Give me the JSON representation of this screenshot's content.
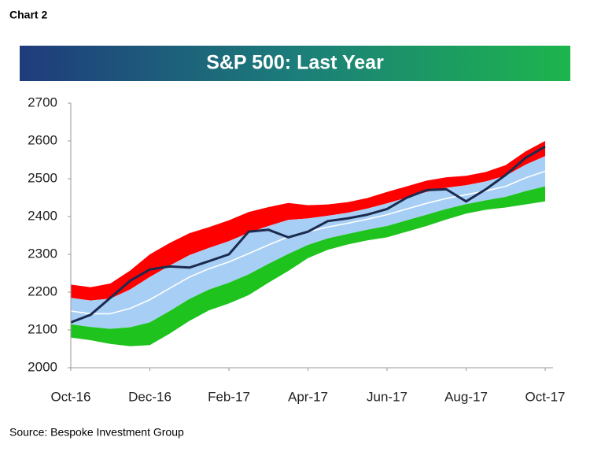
{
  "chart_data": {
    "type": "line",
    "chart_label": "Chart 2",
    "title": "S&P 500: Last Year",
    "source": "Source: Bespoke Investment Group",
    "x": [
      0,
      0.5,
      1,
      1.5,
      2,
      2.5,
      3,
      3.5,
      4,
      4.5,
      5,
      5.5,
      6,
      6.5,
      7,
      7.5,
      8,
      8.5,
      9,
      9.5,
      10,
      10.5,
      11,
      11.5,
      12
    ],
    "xlim": [
      0,
      12
    ],
    "xticks": [
      {
        "value": 0,
        "label": "Oct-16"
      },
      {
        "value": 2,
        "label": "Dec-16"
      },
      {
        "value": 4,
        "label": "Feb-17"
      },
      {
        "value": 6,
        "label": "Apr-17"
      },
      {
        "value": 8,
        "label": "Jun-17"
      },
      {
        "value": 10,
        "label": "Aug-17"
      },
      {
        "value": 12,
        "label": "Oct-17"
      }
    ],
    "ylim": [
      2000,
      2700
    ],
    "yticks": [
      2000,
      2100,
      2200,
      2300,
      2400,
      2500,
      2600,
      2700
    ],
    "grid": false,
    "bands": [
      {
        "color": "#ff0000",
        "upper": [
          2220,
          2213,
          2223,
          2257,
          2300,
          2330,
          2356,
          2372,
          2390,
          2412,
          2425,
          2436,
          2430,
          2432,
          2438,
          2449,
          2465,
          2480,
          2495,
          2504,
          2508,
          2518,
          2536,
          2572,
          2600
        ],
        "lower": [
          2185,
          2178,
          2183,
          2207,
          2240,
          2270,
          2298,
          2317,
          2335,
          2357,
          2375,
          2391,
          2395,
          2402,
          2410,
          2421,
          2435,
          2450,
          2465,
          2476,
          2483,
          2493,
          2508,
          2537,
          2560
        ]
      },
      {
        "color": "#a7cff5",
        "upper": [
          2185,
          2178,
          2183,
          2207,
          2240,
          2270,
          2298,
          2317,
          2335,
          2357,
          2375,
          2391,
          2395,
          2402,
          2410,
          2421,
          2435,
          2450,
          2465,
          2476,
          2483,
          2493,
          2508,
          2537,
          2560
        ],
        "lower": [
          2115,
          2108,
          2103,
          2107,
          2120,
          2150,
          2182,
          2207,
          2225,
          2247,
          2275,
          2301,
          2325,
          2342,
          2354,
          2365,
          2375,
          2390,
          2405,
          2420,
          2433,
          2443,
          2452,
          2467,
          2480
        ]
      },
      {
        "color": "#1ec31e",
        "upper": [
          2115,
          2108,
          2103,
          2107,
          2120,
          2150,
          2182,
          2207,
          2225,
          2247,
          2275,
          2301,
          2325,
          2342,
          2354,
          2365,
          2375,
          2390,
          2405,
          2420,
          2433,
          2443,
          2452,
          2467,
          2480
        ],
        "lower": [
          2080,
          2073,
          2063,
          2057,
          2060,
          2090,
          2124,
          2152,
          2170,
          2192,
          2225,
          2256,
          2290,
          2312,
          2326,
          2337,
          2345,
          2360,
          2375,
          2392,
          2408,
          2418,
          2424,
          2432,
          2440
        ]
      }
    ],
    "series": [
      {
        "color": "#ffffff",
        "values": [
          2150,
          2143,
          2143,
          2157,
          2180,
          2210,
          2240,
          2262,
          2280,
          2302,
          2325,
          2346,
          2360,
          2372,
          2382,
          2393,
          2405,
          2420,
          2435,
          2448,
          2458,
          2468,
          2480,
          2502,
          2520
        ]
      },
      {
        "color": "#1c2a4f",
        "values": [
          2120,
          2140,
          2185,
          2230,
          2260,
          2268,
          2265,
          2282,
          2300,
          2360,
          2365,
          2345,
          2360,
          2388,
          2395,
          2405,
          2420,
          2450,
          2470,
          2472,
          2440,
          2472,
          2510,
          2555,
          2585
        ]
      }
    ]
  }
}
